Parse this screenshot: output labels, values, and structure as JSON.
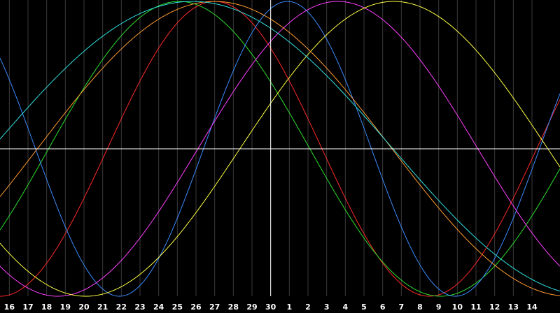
{
  "chart_data": {
    "type": "line",
    "title": "",
    "xlabel": "",
    "ylabel": "",
    "x_tick_labels": [
      "16",
      "17",
      "18",
      "19",
      "20",
      "21",
      "22",
      "23",
      "24",
      "25",
      "26",
      "27",
      "28",
      "29",
      "30",
      "1",
      "2",
      "3",
      "4",
      "5",
      "6",
      "7",
      "8",
      "9",
      "10",
      "11",
      "12",
      "13",
      "14"
    ],
    "x_range": [
      -14.5,
      15.5
    ],
    "y_range": [
      -1,
      1
    ],
    "grid": "vertical",
    "legend": "none",
    "background_color": "#000000",
    "grid_color": "#3a3a3a",
    "axis_color": "#ffffff",
    "series": [
      {
        "color": "#ff2a2a",
        "period_days": 23,
        "peak_x": -3.0
      },
      {
        "color": "#2ee02e",
        "period_days": 28,
        "peak_x": -4.9
      },
      {
        "color": "#3b8cff",
        "period_days": 18,
        "peak_x": 0.9
      },
      {
        "color": "#ff40ff",
        "period_days": 30,
        "peak_x": 3.6
      },
      {
        "color": "#ffff44",
        "period_days": 33,
        "peak_x": 6.6
      },
      {
        "color": "#ff9a30",
        "period_days": 38,
        "peak_x": -3.0
      },
      {
        "color": "#30e0e0",
        "period_days": 43,
        "peak_x": -4.2
      }
    ]
  }
}
